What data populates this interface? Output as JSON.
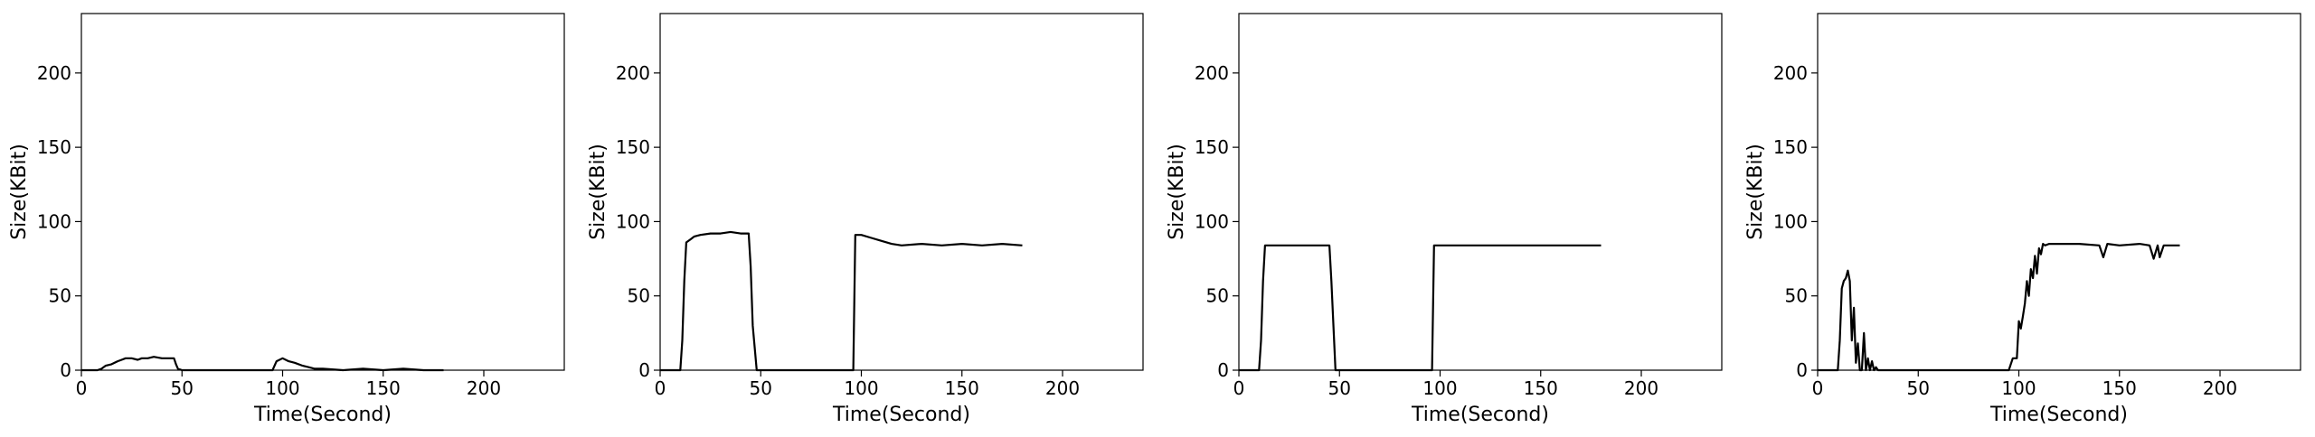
{
  "chart_data": [
    {
      "type": "line",
      "title": "",
      "xlabel": "Time(Second)",
      "ylabel": "Size(KBit)",
      "xlim": [
        0,
        240
      ],
      "ylim": [
        0,
        240
      ],
      "xticks": [
        0,
        50,
        100,
        150,
        200
      ],
      "yticks": [
        0,
        50,
        100,
        150,
        200
      ],
      "grid": false,
      "line_color": "#000000",
      "series": [
        {
          "x": [
            0,
            8,
            10,
            12,
            15,
            18,
            20,
            22,
            25,
            28,
            30,
            33,
            36,
            40,
            43,
            46,
            47,
            48,
            50,
            60,
            70,
            80,
            90,
            95,
            97,
            100,
            103,
            106,
            110,
            113,
            116,
            120,
            130,
            140,
            150,
            160,
            170,
            180
          ],
          "y": [
            0,
            0,
            1,
            3,
            4,
            6,
            7,
            8,
            8,
            7,
            8,
            8,
            9,
            8,
            8,
            8,
            4,
            1,
            0,
            0,
            0,
            0,
            0,
            0,
            6,
            8,
            6,
            5,
            3,
            2,
            1,
            1,
            0,
            1,
            0,
            1,
            0,
            0
          ]
        }
      ]
    },
    {
      "type": "line",
      "title": "",
      "xlabel": "Time(Second)",
      "ylabel": "Size(KBit)",
      "xlim": [
        0,
        240
      ],
      "ylim": [
        0,
        240
      ],
      "xticks": [
        0,
        50,
        100,
        150,
        200
      ],
      "yticks": [
        0,
        50,
        100,
        150,
        200
      ],
      "grid": false,
      "line_color": "#000000",
      "series": [
        {
          "x": [
            0,
            10,
            11,
            12,
            13,
            15,
            17,
            20,
            25,
            30,
            35,
            40,
            44,
            45,
            46,
            48,
            50,
            60,
            70,
            80,
            90,
            96,
            97,
            100,
            105,
            110,
            115,
            120,
            130,
            140,
            150,
            160,
            170,
            180
          ],
          "y": [
            0,
            0,
            20,
            60,
            86,
            88,
            90,
            91,
            92,
            92,
            93,
            92,
            92,
            70,
            30,
            0,
            0,
            0,
            0,
            0,
            0,
            0,
            91,
            91,
            89,
            87,
            85,
            84,
            85,
            84,
            85,
            84,
            85,
            84
          ]
        }
      ]
    },
    {
      "type": "line",
      "title": "",
      "xlabel": "Time(Second)",
      "ylabel": "Size(KBit)",
      "xlim": [
        0,
        240
      ],
      "ylim": [
        0,
        240
      ],
      "xticks": [
        0,
        50,
        100,
        150,
        200
      ],
      "yticks": [
        0,
        50,
        100,
        150,
        200
      ],
      "grid": false,
      "line_color": "#000000",
      "series": [
        {
          "x": [
            0,
            10,
            11,
            12,
            13,
            20,
            30,
            40,
            45,
            46,
            48,
            50,
            60,
            70,
            80,
            90,
            96,
            97,
            100,
            110,
            120,
            130,
            140,
            150,
            160,
            170,
            180
          ],
          "y": [
            0,
            0,
            20,
            60,
            84,
            84,
            84,
            84,
            84,
            60,
            0,
            0,
            0,
            0,
            0,
            0,
            0,
            84,
            84,
            84,
            84,
            84,
            84,
            84,
            84,
            84,
            84
          ]
        }
      ]
    },
    {
      "type": "line",
      "title": "",
      "xlabel": "Time(Second)",
      "ylabel": "Size(KBit)",
      "xlim": [
        0,
        240
      ],
      "ylim": [
        0,
        240
      ],
      "xticks": [
        0,
        50,
        100,
        150,
        200
      ],
      "yticks": [
        0,
        50,
        100,
        150,
        200
      ],
      "grid": false,
      "line_color": "#000000",
      "series": [
        {
          "x": [
            0,
            10,
            11,
            12,
            13,
            14,
            15,
            16,
            17,
            18,
            19,
            20,
            21,
            22,
            23,
            24,
            25,
            26,
            27,
            28,
            29,
            30,
            35,
            40,
            50,
            60,
            70,
            80,
            90,
            95,
            97,
            99,
            100,
            101,
            102,
            103,
            104,
            105,
            106,
            107,
            108,
            109,
            110,
            111,
            112,
            113,
            115,
            120,
            130,
            140,
            142,
            144,
            150,
            160,
            165,
            167,
            169,
            170,
            172,
            175,
            180
          ],
          "y": [
            0,
            0,
            20,
            55,
            60,
            62,
            67,
            60,
            20,
            42,
            5,
            18,
            0,
            0,
            25,
            0,
            8,
            0,
            6,
            0,
            2,
            0,
            0,
            0,
            0,
            0,
            0,
            0,
            0,
            0,
            8,
            8,
            33,
            28,
            36,
            45,
            60,
            50,
            68,
            62,
            77,
            65,
            82,
            78,
            85,
            84,
            85,
            85,
            85,
            84,
            76,
            85,
            84,
            85,
            84,
            75,
            84,
            76,
            84,
            84,
            84
          ]
        }
      ]
    }
  ]
}
